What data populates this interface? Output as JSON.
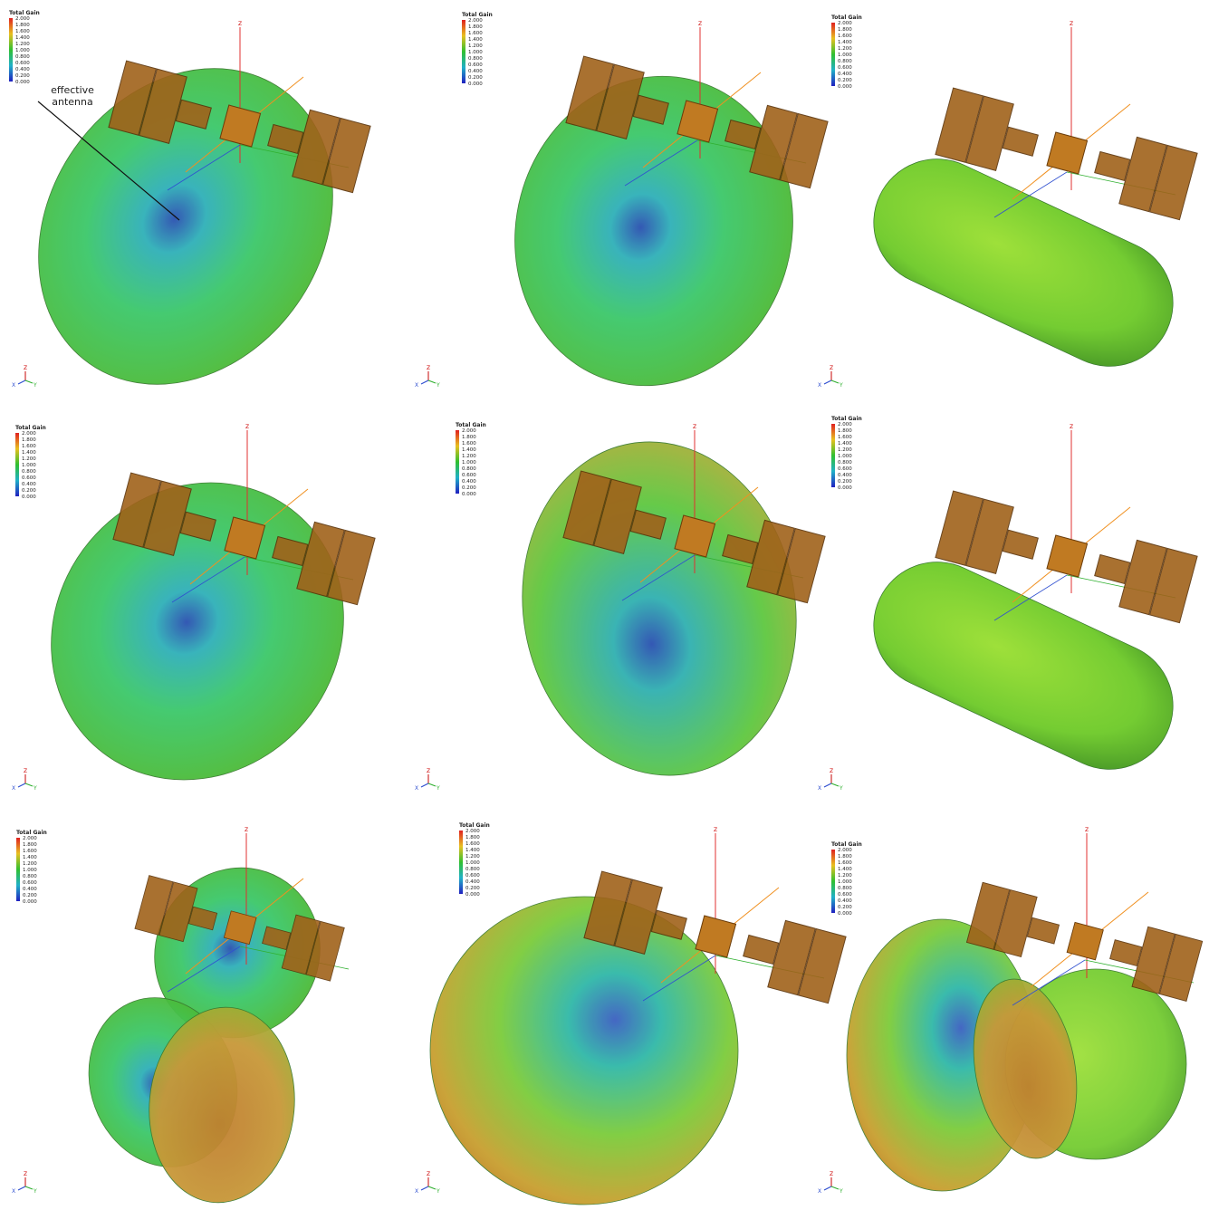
{
  "legend": {
    "title": "Total Gain",
    "ticks": [
      "2.000",
      "1.800",
      "1.600",
      "1.400",
      "1.200",
      "1.000",
      "0.800",
      "0.600",
      "0.400",
      "0.200",
      "0.000"
    ]
  },
  "axes": {
    "z": "Z",
    "x": "X",
    "y": "Y"
  },
  "annotation": "effective antenna"
}
